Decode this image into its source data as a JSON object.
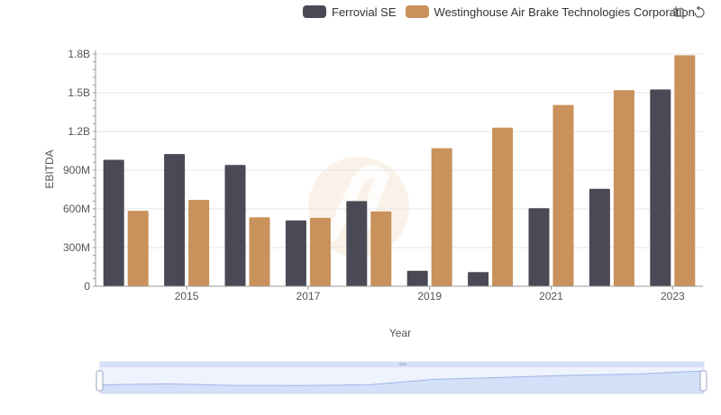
{
  "legend": {
    "items": [
      {
        "label": "Ferrovial SE",
        "color": "#4a4a56"
      },
      {
        "label": "Westinghouse Air Brake Technologies Corporation",
        "color": "#c9915b"
      }
    ]
  },
  "toolbox": {
    "icons": [
      "zoom-icon",
      "zoom-reset-icon"
    ]
  },
  "chart_data": {
    "type": "bar",
    "categories": [
      "2014",
      "2015",
      "2016",
      "2017",
      "2018",
      "2019",
      "2020",
      "2021",
      "2022",
      "2023"
    ],
    "x_tick_labels": [
      "2015",
      "2017",
      "2019",
      "2021",
      "2023"
    ],
    "xlabel": "Year",
    "ylabel": "EBITDA",
    "ylim": [
      0,
      1800000000
    ],
    "y_ticks": [
      0,
      300000000,
      600000000,
      900000000,
      1200000000,
      1500000000,
      1800000000
    ],
    "y_tick_labels": [
      "0",
      "300M",
      "600M",
      "900M",
      "1.2B",
      "1.5B",
      "1.8B"
    ],
    "grid": true,
    "legend_position": "top-right",
    "series": [
      {
        "name": "Ferrovial SE",
        "color": "#4a4a56",
        "values": [
          980000000,
          1025000000,
          940000000,
          510000000,
          660000000,
          120000000,
          110000000,
          605000000,
          755000000,
          1525000000
        ]
      },
      {
        "name": "Westinghouse Air Brake Technologies Corporation",
        "color": "#c9915b",
        "values": [
          585000000,
          670000000,
          535000000,
          530000000,
          580000000,
          1070000000,
          1230000000,
          1405000000,
          1520000000,
          1790000000
        ]
      }
    ],
    "zoom_slider": {
      "start": 0,
      "end": 1
    }
  }
}
